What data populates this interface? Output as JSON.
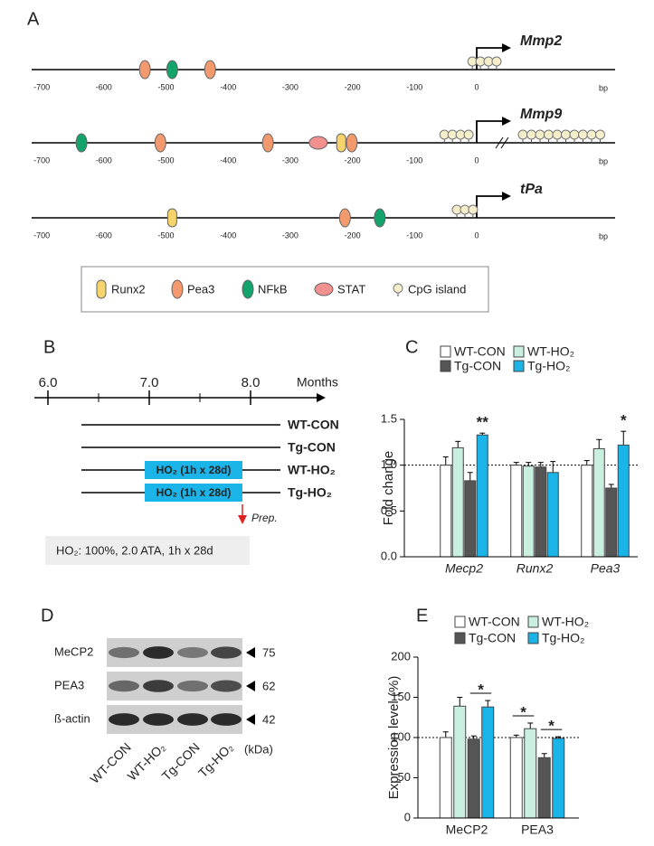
{
  "panel_labels": [
    "A",
    "B",
    "C",
    "D",
    "E"
  ],
  "promoter_maps": {
    "axis_ticks": [
      -700,
      -600,
      -500,
      -400,
      -300,
      -200,
      -100,
      0
    ],
    "unit": "bp",
    "legend": [
      {
        "name": "Runx2",
        "color": "#f6d36b"
      },
      {
        "name": "Pea3",
        "color": "#f29a6e"
      },
      {
        "name": "NFkB",
        "color": "#14a36b"
      },
      {
        "name": "STAT",
        "color": "#f28f8f"
      },
      {
        "name": "CpG island",
        "color": "#f5eecb"
      }
    ],
    "genes": [
      {
        "name": "Mmp2",
        "sites": [
          {
            "factor": 1,
            "bp": -534
          },
          {
            "factor": 2,
            "bp": -490
          },
          {
            "factor": 1,
            "bp": -429
          }
        ],
        "cpg": [
          -7,
          6,
          19,
          32
        ],
        "break": false
      },
      {
        "name": "Mmp9",
        "sites": [
          {
            "factor": 2,
            "bp": -636
          },
          {
            "factor": 1,
            "bp": -509
          },
          {
            "factor": 1,
            "bp": -336
          },
          {
            "factor": 3,
            "bp": -255
          },
          {
            "factor": 0,
            "bp": -218
          },
          {
            "factor": 1,
            "bp": -201
          }
        ],
        "cpg": [
          -52,
          -39,
          -26,
          -13
        ],
        "break": true
      },
      {
        "name": "tPa",
        "sites": [
          {
            "factor": 0,
            "bp": -490
          },
          {
            "factor": 1,
            "bp": -212
          },
          {
            "factor": 2,
            "bp": -156
          }
        ],
        "cpg": [
          -32,
          -19,
          -6
        ],
        "break": false
      }
    ]
  },
  "timeline": {
    "ticks": [
      {
        "value": 6,
        "label": "6.0"
      },
      {
        "value": 7,
        "label": "7.0"
      },
      {
        "value": 8,
        "label": "8.0"
      }
    ],
    "minor_ticks": [
      6.5,
      7.5
    ],
    "unit": "Months",
    "treatment": "HO₂ (1h x 28d)",
    "groups": [
      {
        "name": "WT-CON",
        "color": "#000000",
        "treated": false
      },
      {
        "name": "Tg-CON",
        "color": "#000000",
        "treated": false
      },
      {
        "name": "WT-HO₂",
        "color": "#1ab4e8",
        "treated": true
      },
      {
        "name": "Tg-HO₂",
        "color": "#1ab4e8",
        "treated": true
      }
    ],
    "harvest": "Prep.",
    "note": "HO₂: 100%, 2.0 ATA, 1h x 28d"
  },
  "western_blot": {
    "proteins": [
      {
        "name": "MeCP2",
        "kda": "75"
      },
      {
        "name": "PEA3",
        "kda": "62"
      },
      {
        "name": "ß-actin",
        "kda": "42"
      }
    ],
    "lanes": [
      "WT-CON",
      "WT-HO₂",
      "Tg-CON",
      "Tg-HO₂"
    ],
    "unit": "(kDa)"
  },
  "chart_data": [
    {
      "type": "bar",
      "ylabel": "Fold change",
      "categories": [
        "Mecp2",
        "Runx2",
        "Pea3"
      ],
      "italic_categories": true,
      "series": [
        {
          "name": "WT-CON",
          "color": "#ffffff",
          "values": [
            1.0,
            1.0,
            1.0
          ],
          "errors": [
            0.09,
            0.03,
            0.05
          ]
        },
        {
          "name": "WT-HO₂",
          "color": "#c9f0df",
          "values": [
            1.19,
            0.99,
            1.18
          ],
          "errors": [
            0.07,
            0.04,
            0.1
          ]
        },
        {
          "name": "Tg-CON",
          "color": "#555555",
          "values": [
            0.83,
            0.98,
            0.75
          ],
          "errors": [
            0.09,
            0.05,
            0.04
          ]
        },
        {
          "name": "Tg-HO₂",
          "color": "#1ab4e8",
          "values": [
            1.33,
            0.92,
            1.22
          ],
          "errors": [
            0.02,
            0.12,
            0.15
          ]
        }
      ],
      "ylim": [
        0,
        1.5
      ],
      "yticks": [
        {
          "value": 0,
          "label": "0.0"
        },
        {
          "value": 0.5,
          "label": "0.5"
        },
        {
          "value": 1,
          "label": "1.0"
        },
        {
          "value": 1.5,
          "label": "1.5"
        }
      ],
      "reference_line": 1,
      "annotations": [
        {
          "text": "**",
          "category": 0,
          "series": [
            3
          ]
        },
        {
          "text": "*",
          "category": 2,
          "series": [
            3
          ]
        }
      ]
    },
    {
      "type": "bar",
      "ylabel": "Expression level (%)",
      "categories": [
        "MeCP2",
        "PEA3"
      ],
      "italic_categories": false,
      "series": [
        {
          "name": "WT-CON",
          "color": "#ffffff",
          "values": [
            100,
            100
          ],
          "errors": [
            7,
            3
          ]
        },
        {
          "name": "WT-HO₂",
          "color": "#c9f0df",
          "values": [
            139,
            111
          ],
          "errors": [
            11,
            7
          ]
        },
        {
          "name": "Tg-CON",
          "color": "#555555",
          "values": [
            98,
            75
          ],
          "errors": [
            4,
            5
          ]
        },
        {
          "name": "Tg-HO₂",
          "color": "#1ab4e8",
          "values": [
            138,
            99
          ],
          "errors": [
            8,
            2
          ]
        }
      ],
      "ylim": [
        0,
        200
      ],
      "yticks": [
        0,
        50,
        100,
        150,
        200
      ],
      "reference_line": 100,
      "annotations": [
        {
          "text": "*",
          "category": 0,
          "series": [
            2,
            3
          ]
        },
        {
          "text": "*",
          "category": 1,
          "series": [
            0,
            1
          ]
        },
        {
          "text": "*",
          "category": 1,
          "series": [
            2,
            3
          ]
        }
      ]
    }
  ]
}
